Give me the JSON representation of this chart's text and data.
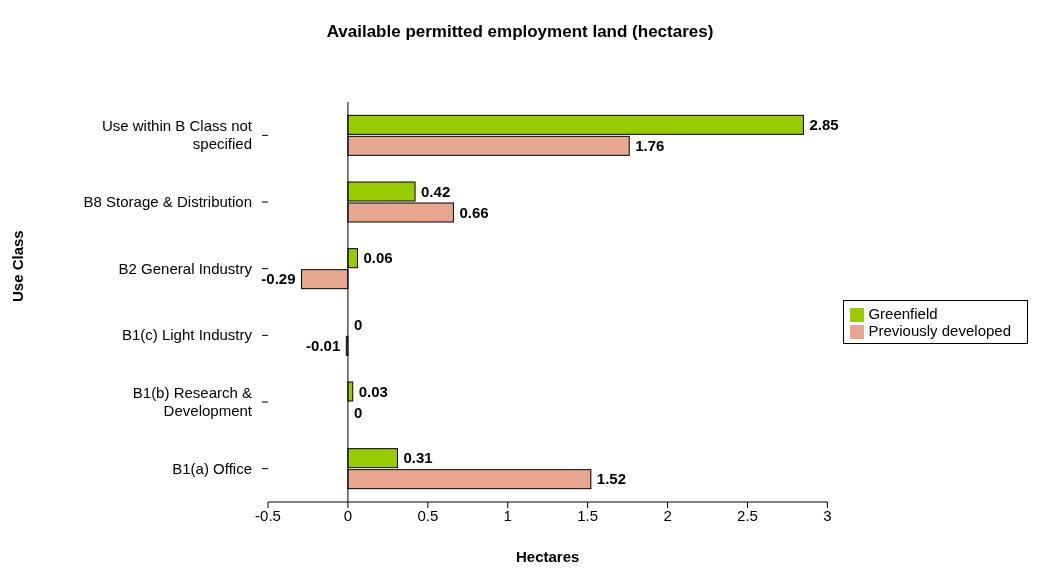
{
  "chart_data": {
    "type": "bar",
    "orientation": "horizontal",
    "title": "Available permitted employment land (hectares)",
    "xlabel": "Hectares",
    "ylabel": "Use Class",
    "categories": [
      "Use within B Class not specified",
      "B8 Storage & Distribution",
      "B2 General Industry",
      "B1(c) Light Industry",
      "B1(b) Research & Development",
      "B1(a) Office"
    ],
    "series": [
      {
        "name": "Greenfield",
        "color": "#99cc00",
        "values": [
          2.85,
          0.42,
          0.06,
          0,
          0.03,
          0.31
        ]
      },
      {
        "name": "Previously developed",
        "color": "#e8a890",
        "values": [
          1.76,
          0.66,
          -0.29,
          -0.01,
          0,
          1.52
        ]
      }
    ],
    "xlim": [
      -0.5,
      3
    ],
    "xticks": [
      -0.5,
      0,
      0.5,
      1,
      1.5,
      2,
      2.5,
      3
    ],
    "data_labels": true,
    "ref_lines": [
      {
        "axis": "x",
        "value": 0,
        "color": "#000000"
      }
    ],
    "legend": "right"
  }
}
